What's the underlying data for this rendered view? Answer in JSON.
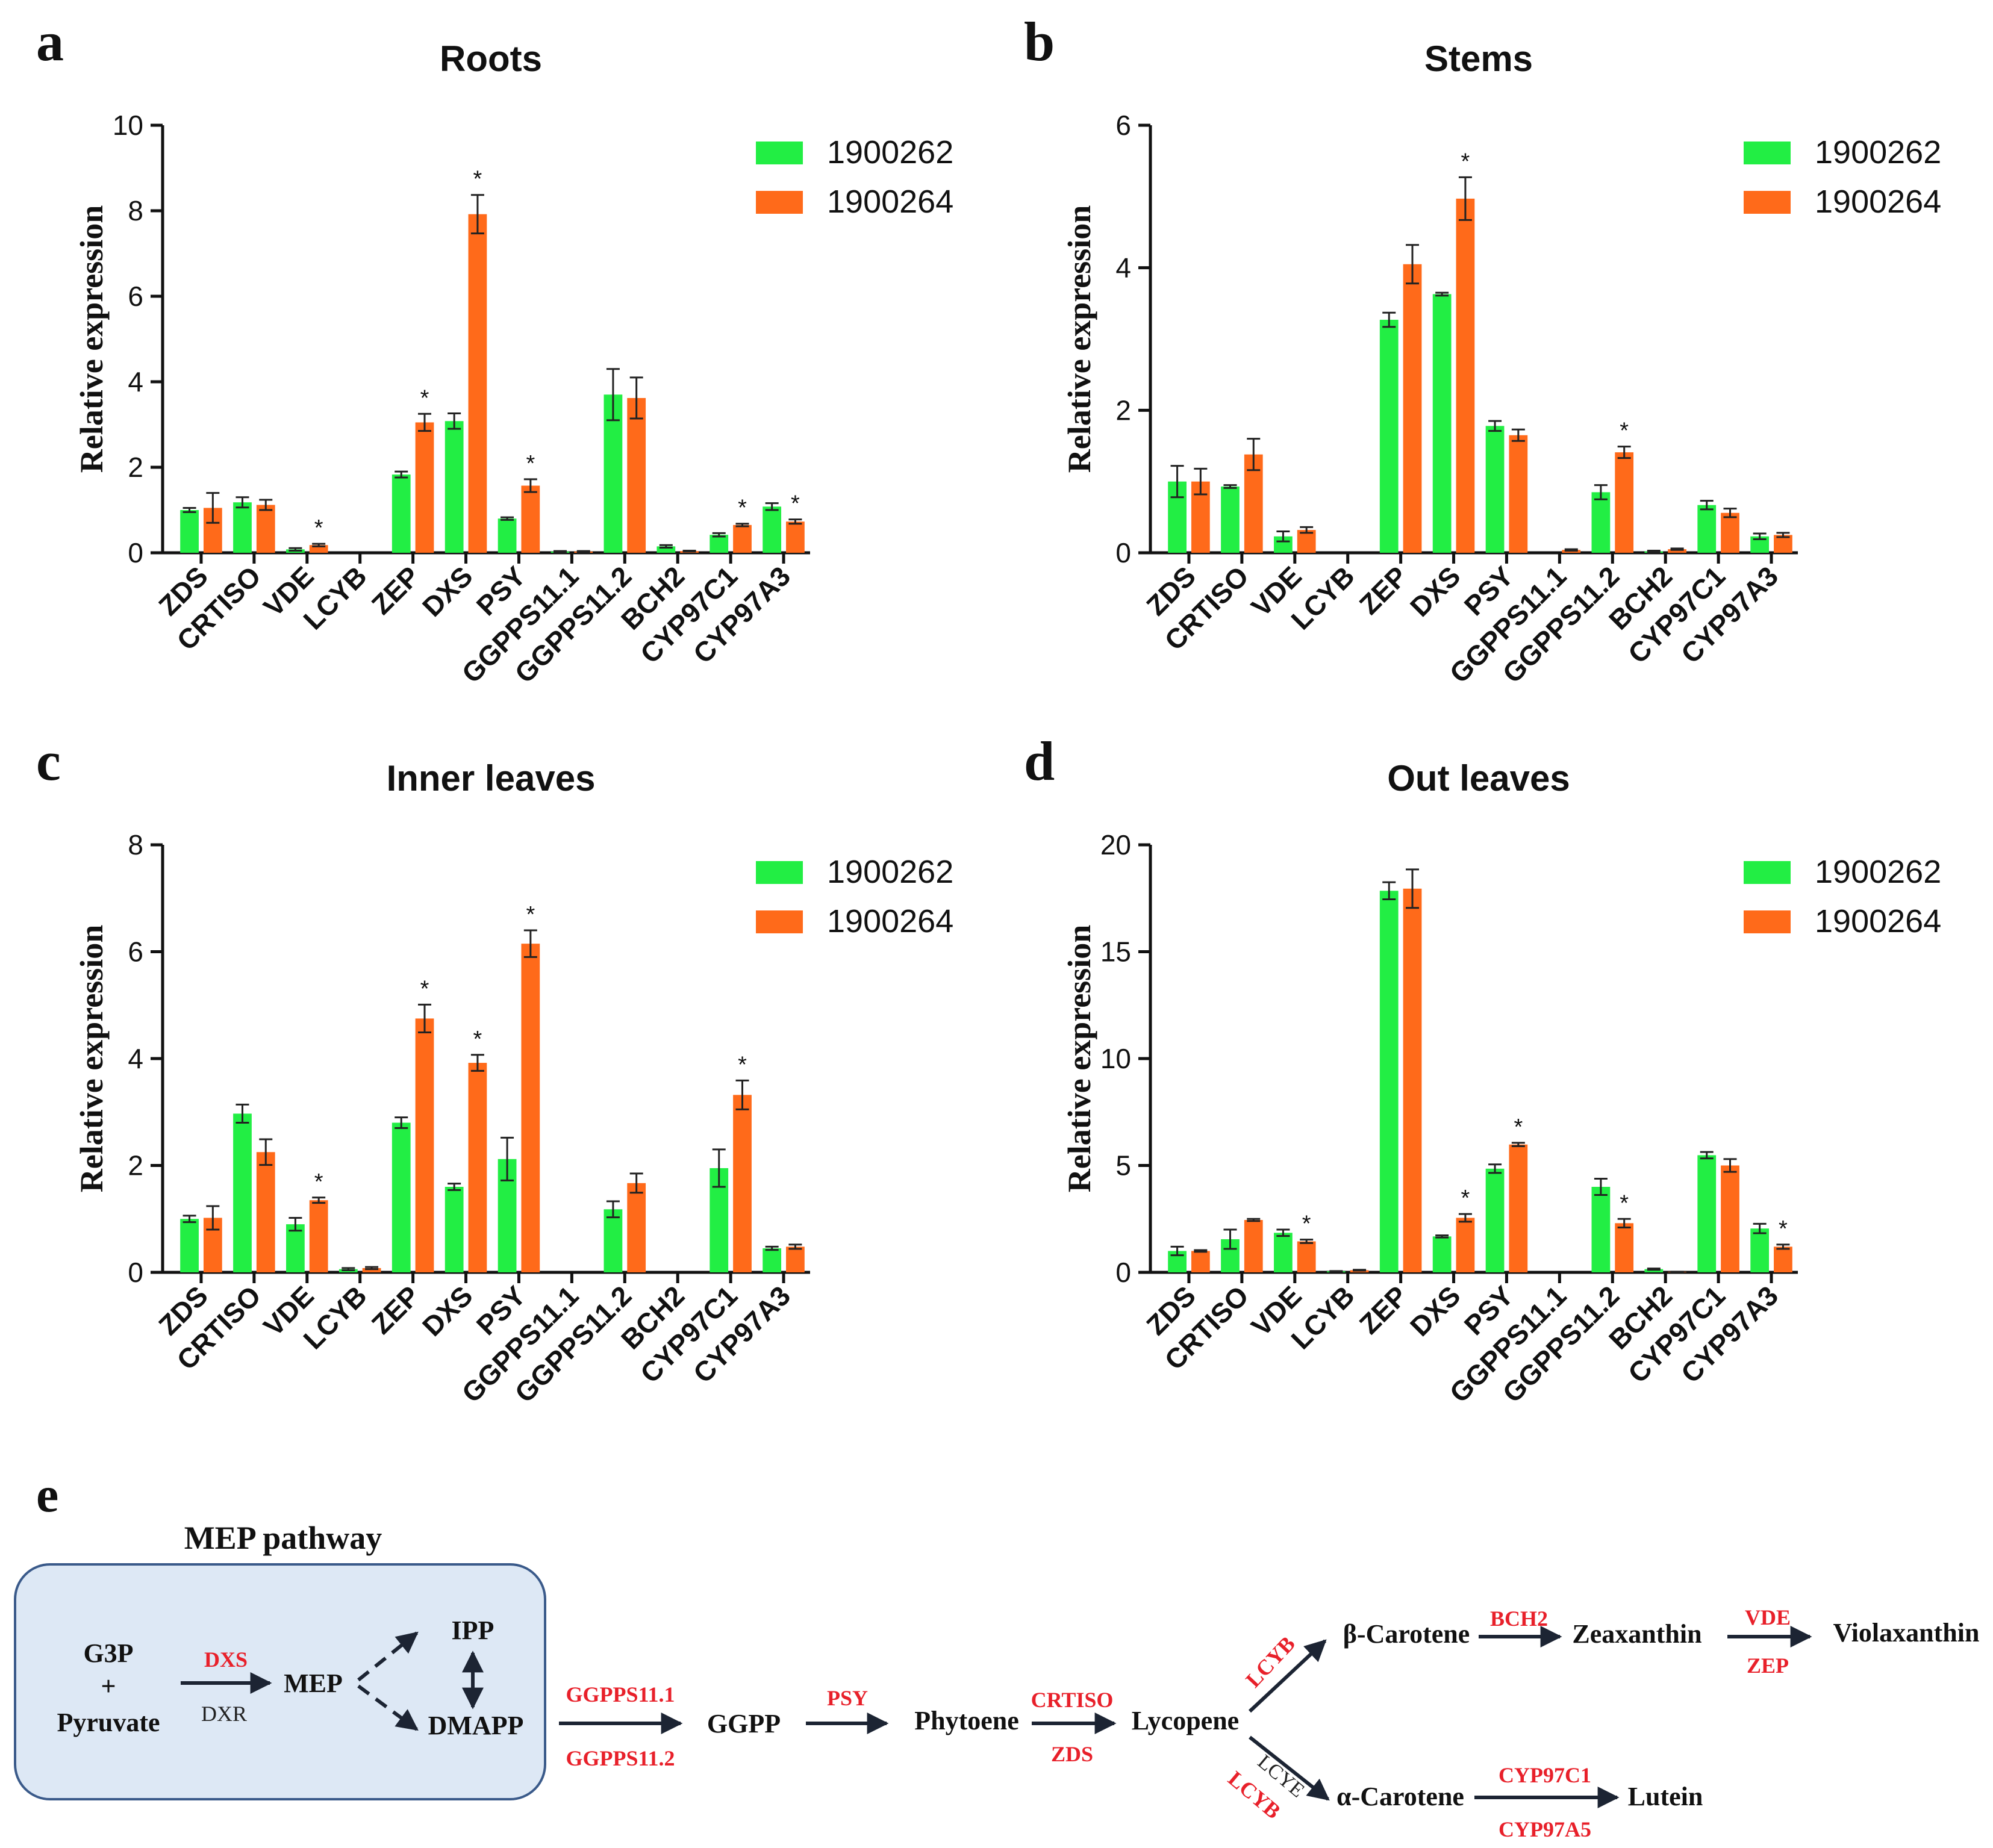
{
  "colors": {
    "series1": "#22ee44",
    "series2": "#ff6a1a",
    "axis": "#111111",
    "gene_red": "#e8202a",
    "box_fill": "#dde8f5",
    "box_stroke": "#3a5a8a",
    "arrow": "#1c2433"
  },
  "chart_data": [
    {
      "type": "bar",
      "panel_letter": "a",
      "title": "Roots",
      "ylabel": "Relative expression",
      "ylim": [
        0,
        10
      ],
      "yticks": [
        "0",
        "2",
        "4",
        "6",
        "8",
        "10"
      ],
      "categories": [
        "ZDS",
        "CRTISO",
        "VDE",
        "LCYB",
        "ZEP",
        "DXS",
        "PSY",
        "GGPPS11.1",
        "GGPPS11.2",
        "BCH2",
        "CYP97C1",
        "CYP97A3"
      ],
      "series": [
        {
          "name": "1900262",
          "values": [
            1.0,
            1.18,
            0.08,
            0.0,
            1.83,
            3.08,
            0.8,
            0.03,
            3.7,
            0.15,
            0.42,
            1.08
          ],
          "errors": [
            0.05,
            0.12,
            0.03,
            0.0,
            0.07,
            0.18,
            0.03,
            0.01,
            0.6,
            0.03,
            0.04,
            0.08
          ],
          "sig": [
            "",
            "",
            "",
            "",
            "",
            "",
            "",
            "",
            "",
            "",
            "",
            ""
          ]
        },
        {
          "name": "1900264",
          "values": [
            1.05,
            1.12,
            0.18,
            0.0,
            3.05,
            7.92,
            1.57,
            0.03,
            3.62,
            0.04,
            0.65,
            0.73
          ],
          "errors": [
            0.35,
            0.12,
            0.03,
            0.0,
            0.2,
            0.45,
            0.15,
            0.01,
            0.48,
            0.01,
            0.03,
            0.05
          ],
          "sig": [
            "",
            "",
            "*",
            "",
            "*",
            "*",
            "*",
            "",
            "",
            "",
            "*",
            "*"
          ]
        }
      ]
    },
    {
      "type": "bar",
      "panel_letter": "b",
      "title": "Stems",
      "ylabel": "Relative expression",
      "ylim": [
        0,
        6
      ],
      "yticks": [
        "0",
        "2",
        "4",
        "6"
      ],
      "categories": [
        "ZDS",
        "CRTISO",
        "VDE",
        "LCYB",
        "ZEP",
        "DXS",
        "PSY",
        "GGPPS11.1",
        "GGPPS11.2",
        "BCH2",
        "CYP97C1",
        "CYP97A3"
      ],
      "series": [
        {
          "name": "1900262",
          "values": [
            1.0,
            0.93,
            0.23,
            0.0,
            3.27,
            3.63,
            1.78,
            0.0,
            0.85,
            0.02,
            0.67,
            0.23
          ],
          "errors": [
            0.22,
            0.02,
            0.07,
            0.0,
            0.1,
            0.02,
            0.07,
            0.0,
            0.1,
            0.01,
            0.06,
            0.04
          ],
          "sig": [
            "",
            "",
            "",
            "",
            "",
            "",
            "",
            "",
            "",
            "",
            "",
            ""
          ]
        },
        {
          "name": "1900264",
          "values": [
            1.0,
            1.38,
            0.32,
            0.0,
            4.05,
            4.97,
            1.65,
            0.04,
            1.41,
            0.05,
            0.56,
            0.25
          ],
          "errors": [
            0.18,
            0.22,
            0.04,
            0.0,
            0.27,
            0.3,
            0.08,
            0.01,
            0.08,
            0.01,
            0.06,
            0.03
          ],
          "sig": [
            "",
            "",
            "",
            "",
            "",
            "*",
            "",
            "",
            "*",
            "",
            "",
            ""
          ]
        }
      ]
    },
    {
      "type": "bar",
      "panel_letter": "c",
      "title": "Inner leaves",
      "ylabel": "Relative expression",
      "ylim": [
        0,
        8
      ],
      "yticks": [
        "0",
        "2",
        "4",
        "6",
        "8"
      ],
      "categories": [
        "ZDS",
        "CRTISO",
        "VDE",
        "LCYB",
        "ZEP",
        "DXS",
        "PSY",
        "GGPPS11.1",
        "GGPPS11.2",
        "BCH2",
        "CYP97C1",
        "CYP97A3"
      ],
      "series": [
        {
          "name": "1900262",
          "values": [
            1.0,
            2.97,
            0.9,
            0.06,
            2.8,
            1.6,
            2.12,
            0.0,
            1.18,
            0.0,
            1.95,
            0.45
          ],
          "errors": [
            0.06,
            0.17,
            0.12,
            0.02,
            0.1,
            0.06,
            0.4,
            0.0,
            0.15,
            0.0,
            0.35,
            0.03
          ],
          "sig": [
            "",
            "",
            "",
            "",
            "",
            "",
            "",
            "",
            "",
            "",
            "",
            ""
          ]
        },
        {
          "name": "1900264",
          "values": [
            1.02,
            2.25,
            1.35,
            0.08,
            4.75,
            3.92,
            6.15,
            0.0,
            1.67,
            0.0,
            3.32,
            0.48
          ],
          "errors": [
            0.22,
            0.24,
            0.05,
            0.02,
            0.26,
            0.15,
            0.25,
            0.0,
            0.18,
            0.0,
            0.27,
            0.04
          ],
          "sig": [
            "",
            "",
            "*",
            "",
            "*",
            "*",
            "*",
            "",
            "",
            "",
            "*",
            ""
          ]
        }
      ]
    },
    {
      "type": "bar",
      "panel_letter": "d",
      "title": "Out leaves",
      "ylabel": "Relative expression",
      "ylim": [
        0,
        20
      ],
      "yticks": [
        "0",
        "5",
        "10",
        "15",
        "20"
      ],
      "categories": [
        "ZDS",
        "CRTISO",
        "VDE",
        "LCYB",
        "ZEP",
        "DXS",
        "PSY",
        "GGPPS11.1",
        "GGPPS11.2",
        "BCH2",
        "CYP97C1",
        "CYP97A3"
      ],
      "series": [
        {
          "name": "1900262",
          "values": [
            1.0,
            1.55,
            1.85,
            0.05,
            17.85,
            1.68,
            4.85,
            0.0,
            4.0,
            0.15,
            5.48,
            2.05
          ],
          "errors": [
            0.2,
            0.45,
            0.15,
            0.01,
            0.4,
            0.05,
            0.2,
            0.0,
            0.38,
            0.03,
            0.15,
            0.22
          ],
          "sig": [
            "",
            "",
            "",
            "",
            "",
            "",
            "",
            "",
            "",
            "",
            "",
            ""
          ]
        },
        {
          "name": "1900264",
          "values": [
            1.0,
            2.45,
            1.45,
            0.1,
            17.95,
            2.55,
            5.98,
            0.0,
            2.3,
            0.02,
            5.0,
            1.2
          ],
          "errors": [
            0.04,
            0.05,
            0.08,
            0.02,
            0.9,
            0.18,
            0.08,
            0.0,
            0.2,
            0.01,
            0.3,
            0.1
          ],
          "sig": [
            "",
            "",
            "*",
            "",
            "",
            "*",
            "*",
            "",
            "*",
            "",
            "",
            "*"
          ]
        }
      ]
    }
  ],
  "pathway": {
    "panel_letter": "e",
    "box_title": "MEP pathway",
    "g3p": "G3P",
    "plus": "+",
    "pyruvate": "Pyruvate",
    "dxs": "DXS",
    "dxr": "DXR",
    "mep": "MEP",
    "ipp": "IPP",
    "dmapp": "DMAPP",
    "ggpps1": "GGPPS11.1",
    "ggpps2": "GGPPS11.2",
    "ggpp": "GGPP",
    "psy": "PSY",
    "phytoene": "Phytoene",
    "crtiso": "CRTISO",
    "zds": "ZDS",
    "lycopene": "Lycopene",
    "lcyb_up": "LCYB",
    "lcyb_down": "LCYB",
    "lcye": "LCYE",
    "beta_carotene": "β-Carotene",
    "alpha_carotene": "α-Carotene",
    "bch2": "BCH2",
    "zeaxanthin": "Zeaxanthin",
    "vde": "VDE",
    "zep": "ZEP",
    "violaxanthin": "Violaxanthin",
    "cyp97c1": "CYP97C1",
    "cyp97a5": "CYP97A5",
    "lutein": "Lutein"
  }
}
